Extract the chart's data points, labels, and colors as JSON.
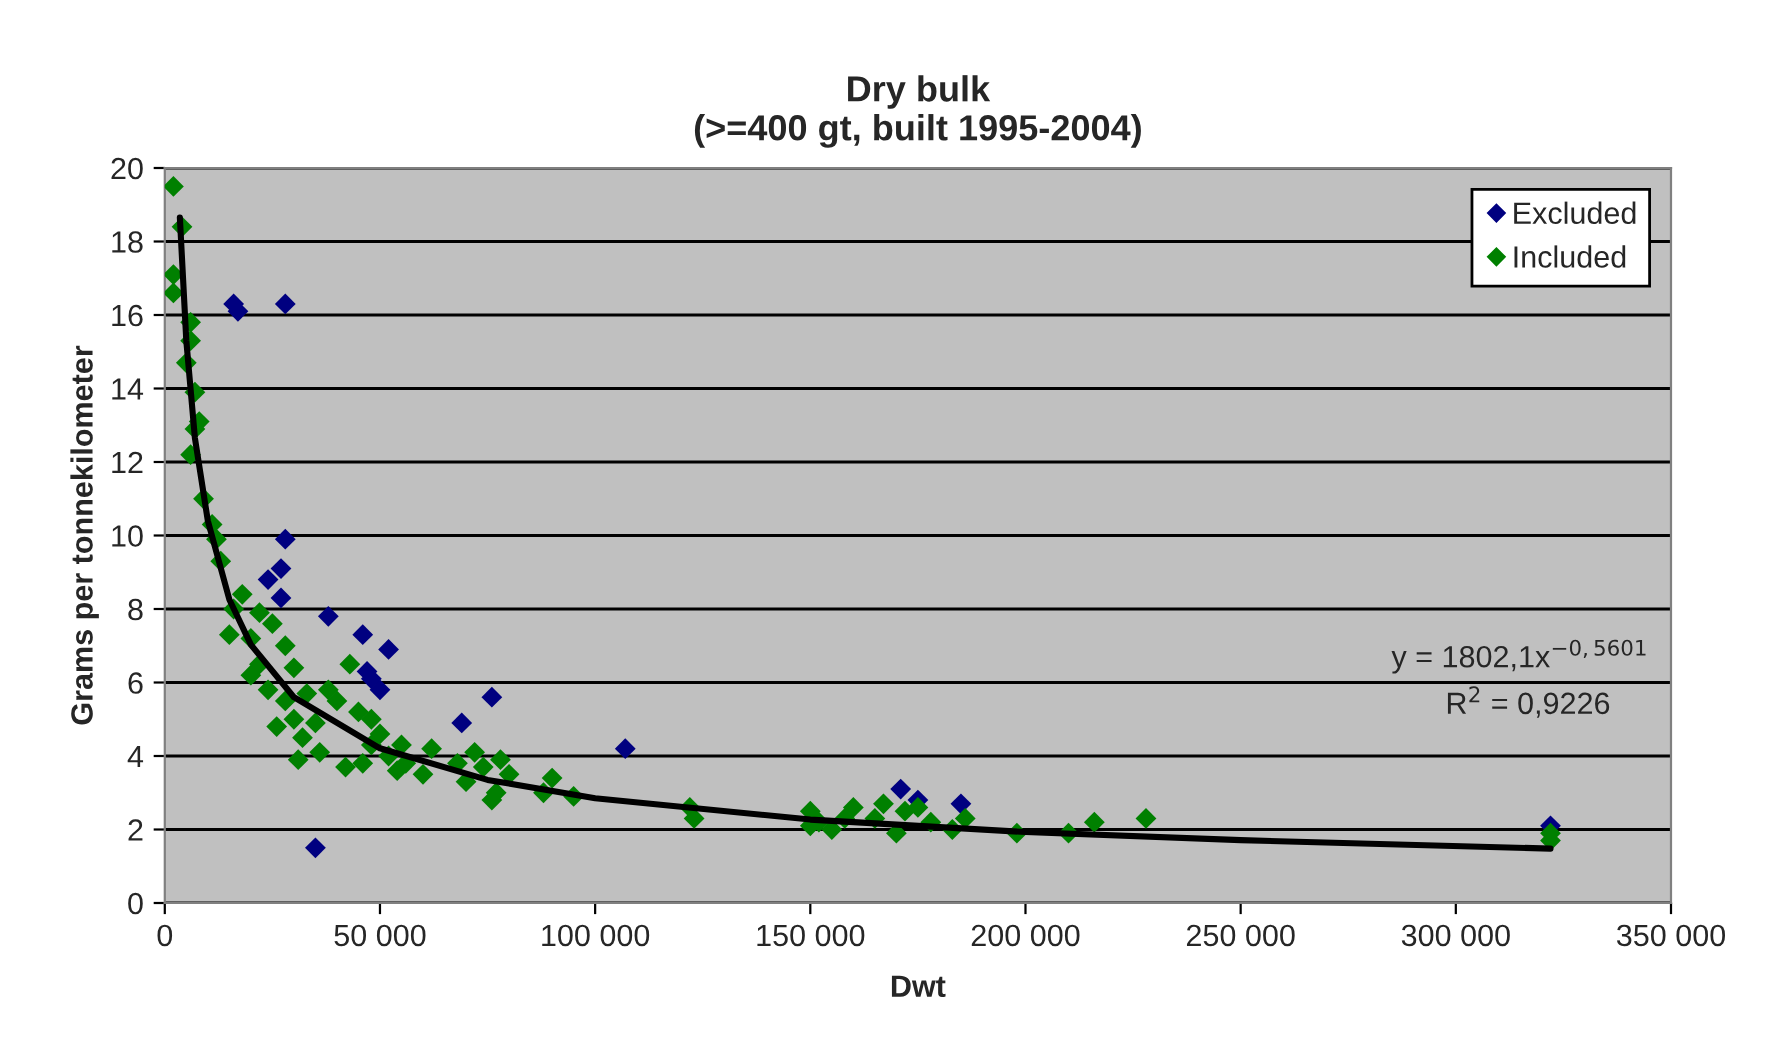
{
  "chart_data": {
    "type": "scatter",
    "title": "Dry bulk\n(>=400 gt, built 1995-2004)",
    "xlabel": "Dwt",
    "ylabel": "Grams per tonnekilometer",
    "xlim": [
      0,
      350000
    ],
    "ylim": [
      0,
      20
    ],
    "xticks": [
      0,
      {
        "value": 50000,
        "label": "50 000"
      },
      {
        "value": 100000,
        "label": "100 000"
      },
      {
        "value": 150000,
        "label": "150 000"
      },
      {
        "value": 200000,
        "label": "200 000"
      },
      {
        "value": 250000,
        "label": "250 000"
      },
      {
        "value": 300000,
        "label": "300 000"
      },
      {
        "value": 350000,
        "label": "350 000"
      }
    ],
    "yticks": [
      0,
      2,
      4,
      6,
      8,
      10,
      12,
      14,
      16,
      18,
      20
    ],
    "grid": "y",
    "legend": "top right",
    "marker": "diamond",
    "annotations": [
      "y = 1802,1x$^{−0,5601}$",
      "R$^{2}$ = 0,9226"
    ],
    "series": [
      {
        "name": "Excluded",
        "color": "#000080",
        "x": [
          16000,
          17000,
          28000,
          28000,
          27000,
          24000,
          27000,
          35000,
          38000,
          46000,
          52000,
          47000,
          48000,
          50000,
          69000,
          76000,
          107000,
          171000,
          175000,
          185000,
          322000
        ],
        "values": [
          16.3,
          16.1,
          16.3,
          9.9,
          9.1,
          8.8,
          8.3,
          1.5,
          7.8,
          7.3,
          6.9,
          6.3,
          6.1,
          5.8,
          4.9,
          5.6,
          4.2,
          3.1,
          2.8,
          2.7,
          2.1
        ]
      },
      {
        "name": "Included",
        "color": "#008000",
        "x": [
          2000,
          4000,
          2000,
          2000,
          6000,
          6000,
          5000,
          7000,
          8000,
          7000,
          6000,
          9000,
          11000,
          12000,
          13000,
          18000,
          16000,
          22000,
          20000,
          25000,
          15000,
          22000,
          30000,
          24000,
          28000,
          30000,
          35000,
          26000,
          32000,
          40000,
          45000,
          50000,
          48000,
          52000,
          55000,
          46000,
          54000,
          42000,
          56000,
          48000,
          38000,
          43000,
          72000,
          74000,
          70000,
          77000,
          76000,
          80000,
          68000,
          78000,
          90000,
          88000,
          95000,
          122000,
          123000,
          150000,
          152000,
          155000,
          160000,
          165000,
          170000,
          172000,
          178000,
          183000,
          186000,
          198000,
          210000,
          216000,
          228000,
          322000,
          322000,
          150000,
          167000,
          158000,
          175000,
          36000,
          31000,
          62000,
          60000,
          28000,
          20000,
          33000
        ],
        "values": [
          19.5,
          18.4,
          17.1,
          16.6,
          15.8,
          15.3,
          14.7,
          13.9,
          13.1,
          12.9,
          12.2,
          11.0,
          10.3,
          9.9,
          9.3,
          8.4,
          8.0,
          7.9,
          7.2,
          7.6,
          7.3,
          6.5,
          6.4,
          5.8,
          5.5,
          5.0,
          4.9,
          4.8,
          4.5,
          5.5,
          5.2,
          4.6,
          4.3,
          4.0,
          4.3,
          3.8,
          3.6,
          3.7,
          3.8,
          5.0,
          5.8,
          6.5,
          4.1,
          3.7,
          3.3,
          3.0,
          2.8,
          3.5,
          3.8,
          3.9,
          3.4,
          3.0,
          2.9,
          2.6,
          2.3,
          2.5,
          2.2,
          2.0,
          2.6,
          2.3,
          1.9,
          2.5,
          2.2,
          2.0,
          2.3,
          1.9,
          1.9,
          2.2,
          2.3,
          1.7,
          1.9,
          2.1,
          2.7,
          2.3,
          2.6,
          4.1,
          3.9,
          4.2,
          3.5,
          7.0,
          6.2,
          5.7
        ]
      },
      {
        "type": "line",
        "marker": "none",
        "color": "#000000",
        "x": [
          3500,
          5000,
          7000,
          10000,
          15000,
          20000,
          30000,
          50000,
          75000,
          100000,
          150000,
          200000,
          250000,
          322000
        ],
        "values": [
          18.65,
          15.3,
          12.65,
          10.4,
          8.26,
          7.03,
          5.6,
          4.21,
          3.35,
          2.85,
          2.27,
          1.93,
          1.71,
          1.48
        ]
      }
    ]
  }
}
